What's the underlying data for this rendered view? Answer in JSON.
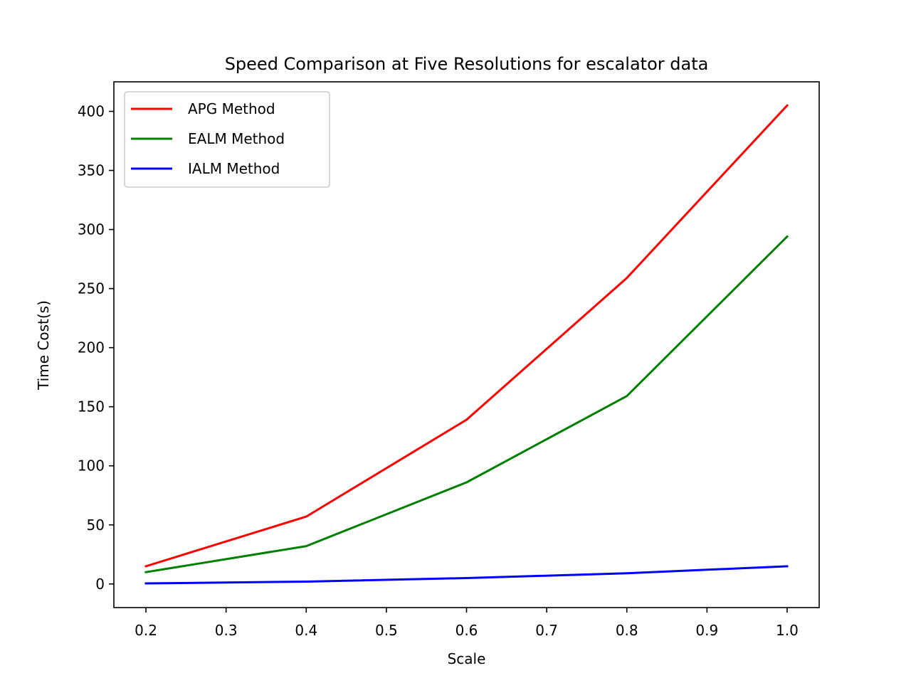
{
  "chart_data": {
    "type": "line",
    "title": "Speed Comparison at Five Resolutions for escalator data",
    "xlabel": "Scale",
    "ylabel": "Time Cost(s)",
    "x": [
      0.2,
      0.4,
      0.6,
      0.8,
      1.0
    ],
    "xlim": [
      0.16,
      1.04
    ],
    "ylim": [
      -20,
      425
    ],
    "xticks": [
      "0.2",
      "0.3",
      "0.4",
      "0.5",
      "0.6",
      "0.7",
      "0.8",
      "0.9",
      "1.0"
    ],
    "yticks": [
      "0",
      "50",
      "100",
      "150",
      "200",
      "250",
      "300",
      "350",
      "400"
    ],
    "legend_position": "top-left",
    "grid": false,
    "series": [
      {
        "name": "APG Method",
        "color": "#ff0000",
        "values": [
          15,
          57,
          139,
          259,
          405
        ]
      },
      {
        "name": "EALM Method",
        "color": "#008000",
        "values": [
          10,
          32,
          86,
          159,
          294
        ]
      },
      {
        "name": "IALM Method",
        "color": "#0000ff",
        "values": [
          0.5,
          2,
          5,
          9,
          15
        ]
      }
    ]
  }
}
